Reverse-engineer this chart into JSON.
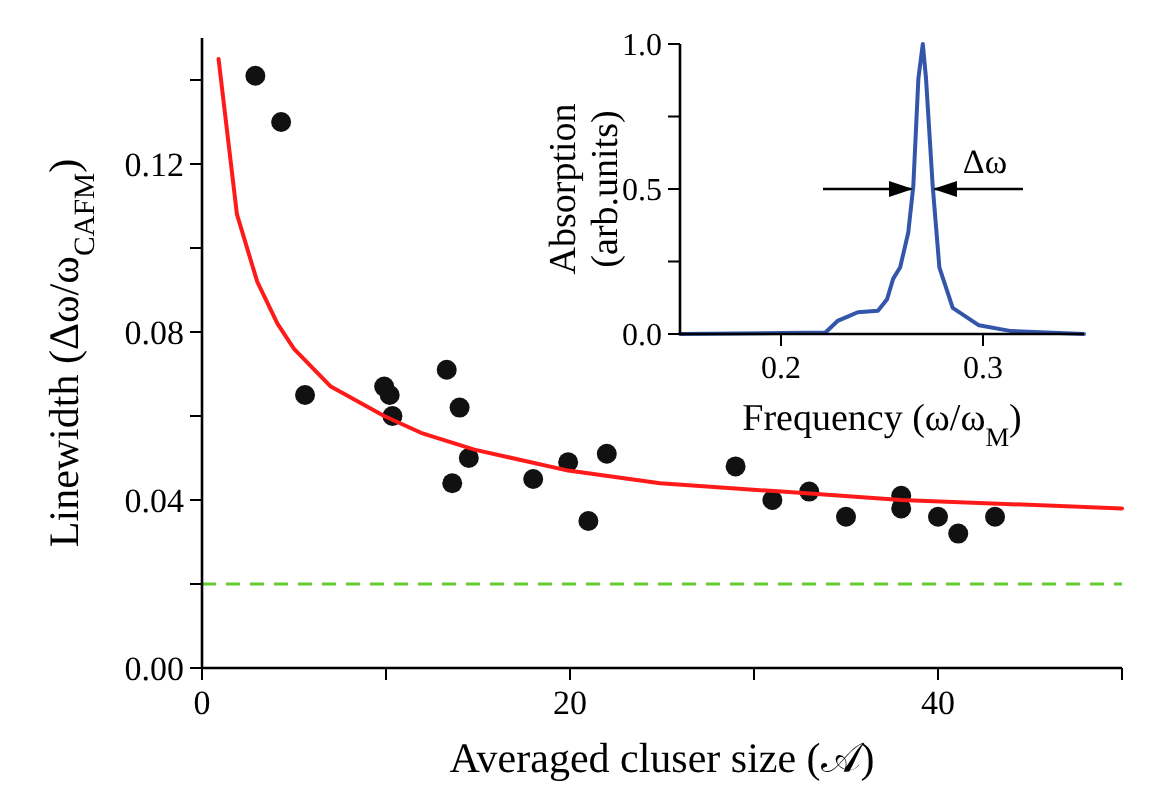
{
  "chart_data": [
    {
      "type": "scatter",
      "xlabel": "Averaged cluser size (𝒜)",
      "ylabel": "Linewidth (Δω/ω$_{CAFM}$)",
      "xlim": [
        0,
        50
      ],
      "xticks": [
        0,
        {
          "value": 10,
          "label": null
        },
        20,
        {
          "value": 30,
          "label": null
        },
        40,
        {
          "value": 50,
          "label": null
        }
      ],
      "ylim": [
        0,
        0.15
      ],
      "yticks": [
        {
          "value": 0,
          "label": "0.00"
        },
        {
          "value": 0.02,
          "label": null
        },
        {
          "value": 0.04,
          "label": "0.04"
        },
        {
          "value": 0.06,
          "label": null
        },
        {
          "value": 0.08,
          "label": "0.08"
        },
        {
          "value": 0.1,
          "label": null
        },
        {
          "value": 0.12,
          "label": "0.12"
        },
        {
          "value": 0.14,
          "label": null
        }
      ],
      "series": [
        {
          "color": "#111111",
          "marker": "circle",
          "x": [
            2.9,
            4.3,
            5.6,
            9.9,
            10.2,
            10.35,
            13.3,
            14.0,
            13.6,
            14.5,
            18.0,
            19.9,
            21.0,
            22.0,
            29.0,
            31.0,
            33.0,
            35.0,
            38.0,
            38.0,
            40.0,
            41.1,
            43.1
          ],
          "values": [
            0.141,
            0.13,
            0.065,
            0.067,
            0.065,
            0.06,
            0.071,
            0.062,
            0.044,
            0.05,
            0.045,
            0.049,
            0.035,
            0.051,
            0.048,
            0.04,
            0.042,
            0.036,
            0.041,
            0.038,
            0.036,
            0.032,
            0.036
          ]
        },
        {
          "type": "line",
          "color": "#ff1a1a",
          "line_style": "solid",
          "x": [
            0.9,
            1.9,
            3.0,
            4.1,
            5.0,
            7.0,
            9.9,
            11.9,
            14.8,
            19.9,
            24.9,
            31.5,
            38.0,
            50.0
          ],
          "values": [
            0.145,
            0.108,
            0.092,
            0.082,
            0.076,
            0.067,
            0.06,
            0.056,
            0.052,
            0.047,
            0.044,
            0.042,
            0.04,
            0.038
          ]
        }
      ],
      "ref_lines": [
        {
          "axis": "y",
          "value": 0.02,
          "color": "#66cc33",
          "line_style": "dashed"
        }
      ]
    },
    {
      "type": "line",
      "xlabel": "Frequency (ω/ω$_{M}$)",
      "ylabel": "Absorption\n(arb.units)",
      "xlim": [
        0.15,
        0.35
      ],
      "xticks": [
        0.2,
        0.3
      ],
      "ylim": [
        0,
        1
      ],
      "yticks": [
        {
          "value": 0,
          "label": "0.0"
        },
        {
          "value": 0.25,
          "label": null
        },
        {
          "value": 0.5,
          "label": "0.5"
        },
        {
          "value": 0.75,
          "label": null
        },
        {
          "value": 1,
          "label": "1.0"
        }
      ],
      "series": [
        {
          "color": "#3355aa",
          "x": [
            0.15,
            0.222,
            0.228,
            0.233,
            0.238,
            0.248,
            0.2525,
            0.2555,
            0.259,
            0.263,
            0.2655,
            0.268,
            0.2702,
            0.2718,
            0.2751,
            0.2784,
            0.285,
            0.298,
            0.314,
            0.35
          ],
          "values": [
            0,
            0.005,
            0.045,
            0.06,
            0.075,
            0.08,
            0.12,
            0.19,
            0.23,
            0.35,
            0.51,
            0.88,
            1.0,
            0.88,
            0.51,
            0.23,
            0.09,
            0.03,
            0.01,
            0
          ]
        }
      ],
      "annotations": [
        "Δω"
      ]
    }
  ]
}
